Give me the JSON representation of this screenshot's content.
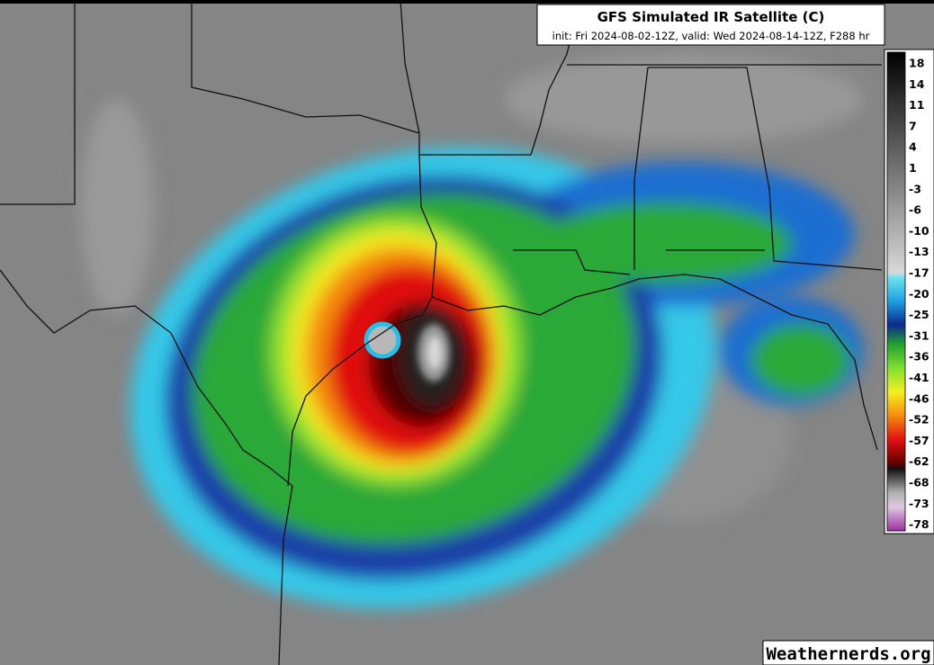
{
  "header": {
    "title": "GFS Simulated IR Satellite (C)",
    "subtitle": "init: Fri 2024-08-02-12Z, valid: Wed 2024-08-14-12Z, F288 hr"
  },
  "colorbar": {
    "labels": [
      "18",
      "14",
      "11",
      "7",
      "4",
      "1",
      "-3",
      "-6",
      "-10",
      "-13",
      "-17",
      "-20",
      "-25",
      "-31",
      "-36",
      "-41",
      "-46",
      "-52",
      "-57",
      "-62",
      "-68",
      "-73",
      "-78"
    ]
  },
  "watermark": "Weathernerds.org"
}
